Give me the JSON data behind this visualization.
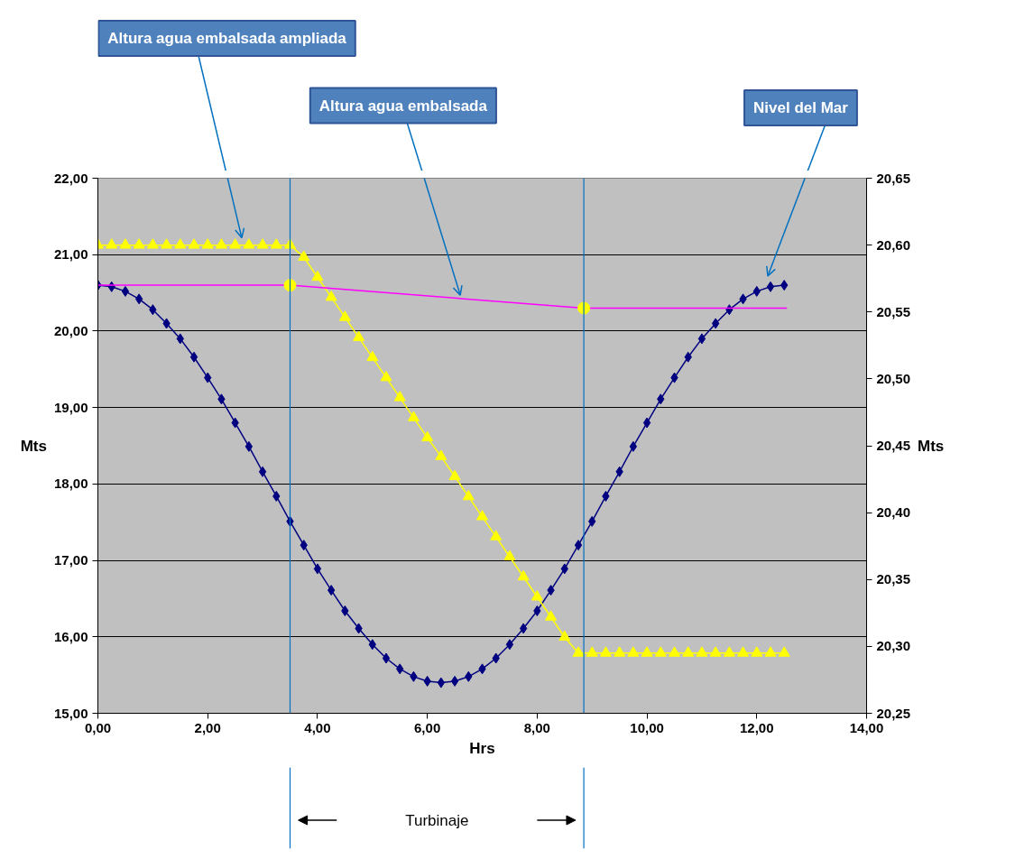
{
  "chart_data": {
    "type": "line",
    "xlabel": "Hrs",
    "ylabel": "Mts",
    "y2label": "Mts",
    "xlim": [
      0,
      14
    ],
    "xticks": [
      {
        "value": 0,
        "label": "0,00"
      },
      {
        "value": 2,
        "label": "2,00"
      },
      {
        "value": 4,
        "label": "4,00"
      },
      {
        "value": 6,
        "label": "6,00"
      },
      {
        "value": 8,
        "label": "8,00"
      },
      {
        "value": 10,
        "label": "10,00"
      },
      {
        "value": 12,
        "label": "12,00"
      },
      {
        "value": 14,
        "label": "14,00"
      }
    ],
    "ylim": [
      15,
      22
    ],
    "yticks": [
      {
        "value": 15,
        "label": "15,00"
      },
      {
        "value": 16,
        "label": "16,00"
      },
      {
        "value": 17,
        "label": "17,00"
      },
      {
        "value": 18,
        "label": "18,00"
      },
      {
        "value": 19,
        "label": "19,00"
      },
      {
        "value": 20,
        "label": "20,00"
      },
      {
        "value": 21,
        "label": "21,00"
      },
      {
        "value": 22,
        "label": "22,00"
      }
    ],
    "y2lim": [
      20.25,
      20.65
    ],
    "y2ticks": [
      {
        "value": 20.25,
        "label": "20,25"
      },
      {
        "value": 20.3,
        "label": "20,30"
      },
      {
        "value": 20.35,
        "label": "20,35"
      },
      {
        "value": 20.4,
        "label": "20,40"
      },
      {
        "value": 20.45,
        "label": "20,45"
      },
      {
        "value": 20.5,
        "label": "20,50"
      },
      {
        "value": 20.55,
        "label": "20,55"
      },
      {
        "value": 20.6,
        "label": "20,60"
      },
      {
        "value": 20.65,
        "label": "20,65"
      }
    ],
    "grid": "y",
    "series": [
      {
        "name": "Nivel del Mar",
        "color": "#000080",
        "marker": "diamond",
        "x": [
          0,
          0.25,
          0.5,
          0.75,
          1,
          1.25,
          1.5,
          1.75,
          2,
          2.25,
          2.5,
          2.75,
          3,
          3.25,
          3.5,
          3.75,
          4,
          4.25,
          4.5,
          4.75,
          5,
          5.25,
          5.5,
          5.75,
          6,
          6.25,
          6.5,
          6.75,
          7,
          7.25,
          7.5,
          7.75,
          8,
          8.25,
          8.5,
          8.75,
          9,
          9.25,
          9.5,
          9.75,
          10,
          10.25,
          10.5,
          10.75,
          11,
          11.25,
          11.5,
          11.75,
          12,
          12.25,
          12.5
        ],
        "values": [
          20.6,
          20.58,
          20.52,
          20.42,
          20.28,
          20.1,
          19.9,
          19.66,
          19.39,
          19.11,
          18.8,
          18.49,
          18.16,
          17.84,
          17.51,
          17.2,
          16.89,
          16.61,
          16.34,
          16.11,
          15.9,
          15.72,
          15.58,
          15.48,
          15.42,
          15.4,
          15.42,
          15.48,
          15.58,
          15.72,
          15.9,
          16.11,
          16.34,
          16.61,
          16.89,
          17.2,
          17.51,
          17.84,
          18.16,
          18.49,
          18.8,
          19.11,
          19.39,
          19.66,
          19.9,
          20.1,
          20.28,
          20.42,
          20.52,
          20.58,
          20.6
        ]
      },
      {
        "name": "Altura agua embalsada ampliada",
        "color": "#ffff00",
        "marker": "triangle",
        "axis": "y2",
        "x": [
          0,
          0.25,
          0.5,
          0.75,
          1,
          1.25,
          1.5,
          1.75,
          2,
          2.25,
          2.5,
          2.75,
          3,
          3.25,
          3.5,
          3.75,
          4,
          4.25,
          4.5,
          4.75,
          5,
          5.25,
          5.5,
          5.75,
          6,
          6.25,
          6.5,
          6.75,
          7,
          7.25,
          7.5,
          7.75,
          8,
          8.25,
          8.5,
          8.75,
          9,
          9.25,
          9.5,
          9.75,
          10,
          10.25,
          10.5,
          10.75,
          11,
          11.25,
          11.5,
          11.75,
          12,
          12.25,
          12.5
        ],
        "values": [
          20.6,
          20.6,
          20.6,
          20.6,
          20.6,
          20.6,
          20.6,
          20.6,
          20.6,
          20.6,
          20.6,
          20.6,
          20.6,
          20.6,
          20.6,
          20.591,
          20.576,
          20.561,
          20.546,
          20.531,
          20.516,
          20.501,
          20.486,
          20.471,
          20.456,
          20.442,
          20.427,
          20.412,
          20.397,
          20.382,
          20.367,
          20.352,
          20.337,
          20.322,
          20.307,
          20.295,
          20.295,
          20.295,
          20.295,
          20.295,
          20.295,
          20.295,
          20.295,
          20.295,
          20.295,
          20.295,
          20.295,
          20.295,
          20.295,
          20.295,
          20.295
        ]
      },
      {
        "name": "Altura agua embalsada",
        "color": "#ff00ff",
        "marker": "none",
        "x": [
          0,
          3.5,
          8.85,
          12.55
        ],
        "values": [
          20.6,
          20.6,
          20.3,
          20.3
        ]
      },
      {
        "type": "scatter",
        "color": "#ffff00",
        "marker": "circle",
        "x": [
          3.5,
          8.85
        ],
        "values": [
          20.6,
          20.3
        ]
      }
    ],
    "ref_lines": [
      {
        "axis": "x",
        "value": 3.5,
        "color": "#0070c0"
      },
      {
        "axis": "x",
        "value": 8.85,
        "color": "#0070c0"
      }
    ],
    "annotations": [
      "Turbinaje"
    ]
  }
}
